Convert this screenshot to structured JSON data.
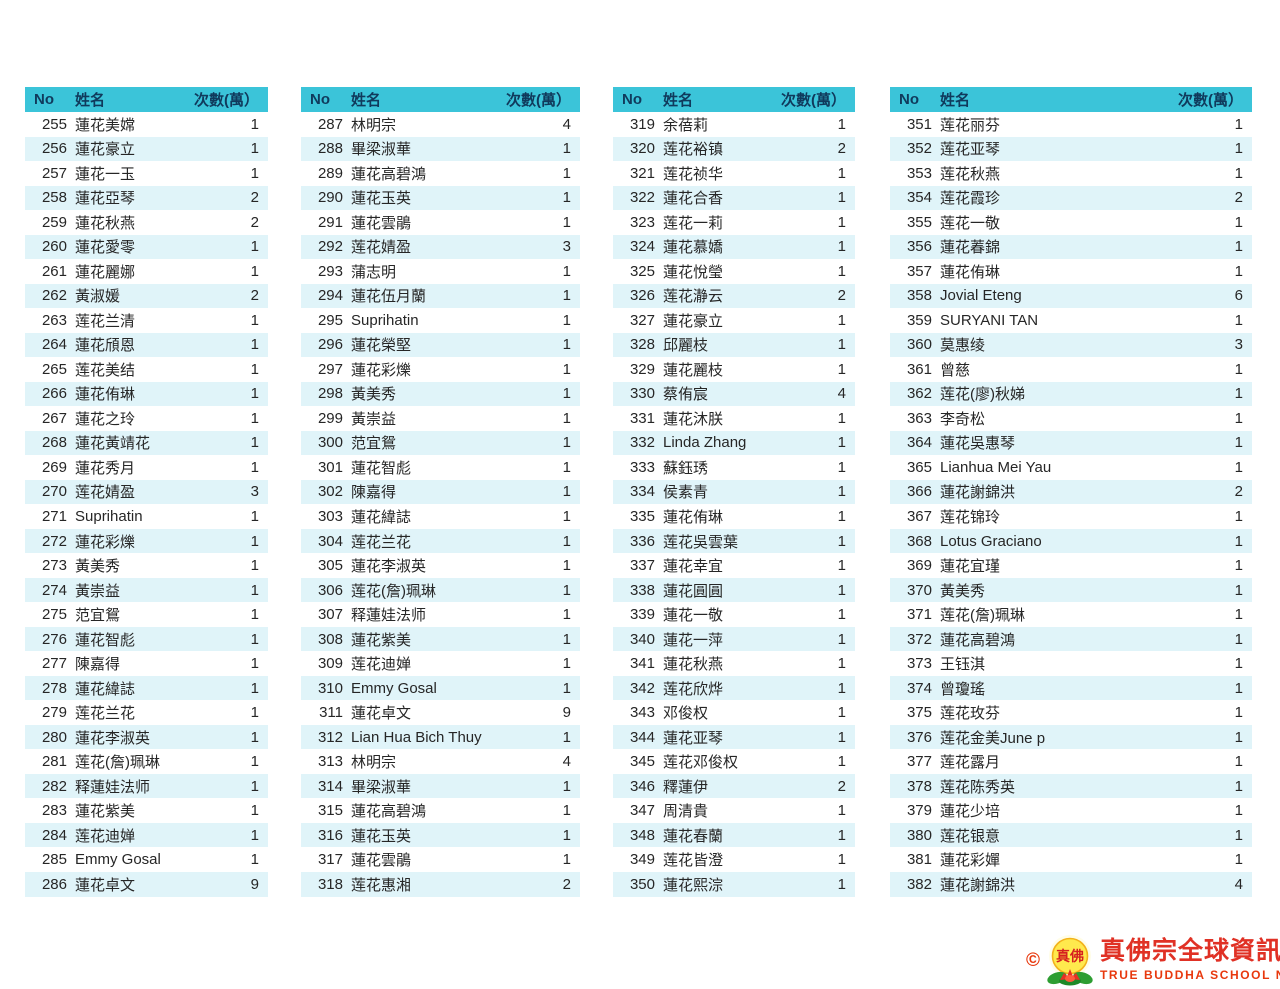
{
  "colors": {
    "header_bg": "#3bc4d9",
    "header_text": "#103a5c",
    "row_alt_bg": "#e0f4f9",
    "body_text": "#262626",
    "logo_red": "#e03125"
  },
  "tables": [
    {
      "headers": {
        "no": "No",
        "name": "姓名",
        "count": "次數(萬）"
      },
      "rows": [
        [
          255,
          "蓮花美嫦",
          1
        ],
        [
          256,
          "蓮花豪立",
          1
        ],
        [
          257,
          "蓮花一玉",
          1
        ],
        [
          258,
          "蓮花亞琴",
          2
        ],
        [
          259,
          "蓮花秋燕",
          2
        ],
        [
          260,
          "蓮花愛零",
          1
        ],
        [
          261,
          "蓮花麗娜",
          1
        ],
        [
          262,
          "黃淑媛",
          2
        ],
        [
          263,
          "莲花兰清",
          1
        ],
        [
          264,
          "蓮花頎恩",
          1
        ],
        [
          265,
          "莲花美结",
          1
        ],
        [
          266,
          "蓮花侑琳",
          1
        ],
        [
          267,
          "蓮花之玲",
          1
        ],
        [
          268,
          "蓮花黃靖花",
          1
        ],
        [
          269,
          "蓮花秀月",
          1
        ],
        [
          270,
          "莲花婧盈",
          3
        ],
        [
          271,
          "Suprihatin",
          1
        ],
        [
          272,
          "蓮花彩爍",
          1
        ],
        [
          273,
          "黃美秀",
          1
        ],
        [
          274,
          "黃崇益",
          1
        ],
        [
          275,
          "范宜鴛",
          1
        ],
        [
          276,
          "蓮花智彪",
          1
        ],
        [
          277,
          "陳嘉得",
          1
        ],
        [
          278,
          "蓮花緯誌",
          1
        ],
        [
          279,
          "莲花兰花",
          1
        ],
        [
          280,
          "蓮花李淑英",
          1
        ],
        [
          281,
          "莲花(詹)珮琳",
          1
        ],
        [
          282,
          "释蓮娃法师",
          1
        ],
        [
          283,
          "蓮花紫美",
          1
        ],
        [
          284,
          "莲花迪婵",
          1
        ],
        [
          285,
          "Emmy Gosal",
          1
        ],
        [
          286,
          "蓮花卓文",
          9
        ]
      ]
    },
    {
      "headers": {
        "no": "No",
        "name": "姓名",
        "count": "次數(萬）"
      },
      "rows": [
        [
          287,
          "林明宗",
          4
        ],
        [
          288,
          "畢梁淑華",
          1
        ],
        [
          289,
          "蓮花高碧鴻",
          1
        ],
        [
          290,
          "蓮花玉英",
          1
        ],
        [
          291,
          "蓮花雲鵑",
          1
        ],
        [
          292,
          "莲花婧盈",
          3
        ],
        [
          293,
          "蒲志明",
          1
        ],
        [
          294,
          "蓮花伍月蘭",
          1
        ],
        [
          295,
          "Suprihatin",
          1
        ],
        [
          296,
          "蓮花榮堅",
          1
        ],
        [
          297,
          "蓮花彩爍",
          1
        ],
        [
          298,
          "黃美秀",
          1
        ],
        [
          299,
          "黃崇益",
          1
        ],
        [
          300,
          "范宜鴛",
          1
        ],
        [
          301,
          "蓮花智彪",
          1
        ],
        [
          302,
          "陳嘉得",
          1
        ],
        [
          303,
          "蓮花緯誌",
          1
        ],
        [
          304,
          "莲花兰花",
          1
        ],
        [
          305,
          "蓮花李淑英",
          1
        ],
        [
          306,
          "莲花(詹)珮琳",
          1
        ],
        [
          307,
          "释蓮娃法师",
          1
        ],
        [
          308,
          "蓮花紫美",
          1
        ],
        [
          309,
          "莲花迪婵",
          1
        ],
        [
          310,
          "Emmy Gosal",
          1
        ],
        [
          311,
          "蓮花卓文",
          9
        ],
        [
          312,
          "Lian Hua Bich Thuy",
          1
        ],
        [
          313,
          "林明宗",
          4
        ],
        [
          314,
          "畢梁淑華",
          1
        ],
        [
          315,
          "蓮花高碧鴻",
          1
        ],
        [
          316,
          "蓮花玉英",
          1
        ],
        [
          317,
          "蓮花雲鵑",
          1
        ],
        [
          318,
          "莲花惠湘",
          2
        ]
      ]
    },
    {
      "headers": {
        "no": "No",
        "name": "姓名",
        "count": "次數(萬）"
      },
      "rows": [
        [
          319,
          "余蓓莉",
          1
        ],
        [
          320,
          "莲花裕镇",
          2
        ],
        [
          321,
          "莲花祯华",
          1
        ],
        [
          322,
          "蓮花合香",
          1
        ],
        [
          323,
          "莲花一莉",
          1
        ],
        [
          324,
          "蓮花慕嬌",
          1
        ],
        [
          325,
          "蓮花悅瑩",
          1
        ],
        [
          326,
          "莲花瀞云",
          2
        ],
        [
          327,
          "蓮花豪立",
          1
        ],
        [
          328,
          "邱麗枝",
          1
        ],
        [
          329,
          "蓮花麗枝",
          1
        ],
        [
          330,
          "蔡侑宸",
          4
        ],
        [
          331,
          "蓮花沐朕",
          1
        ],
        [
          332,
          "Linda Zhang",
          1
        ],
        [
          333,
          "蘇鈺琇",
          1
        ],
        [
          334,
          "侯素青",
          1
        ],
        [
          335,
          "蓮花侑琳",
          1
        ],
        [
          336,
          "莲花吳雲葉",
          1
        ],
        [
          337,
          "蓮花幸宜",
          1
        ],
        [
          338,
          "蓮花圓圓",
          1
        ],
        [
          339,
          "蓮花一敬",
          1
        ],
        [
          340,
          "蓮花一萍",
          1
        ],
        [
          341,
          "蓮花秋燕",
          1
        ],
        [
          342,
          "莲花欣烨",
          1
        ],
        [
          343,
          "邓俊权",
          1
        ],
        [
          344,
          "蓮花亚琴",
          1
        ],
        [
          345,
          "莲花邓俊权",
          1
        ],
        [
          346,
          "釋蓮伊",
          2
        ],
        [
          347,
          "周清貴",
          1
        ],
        [
          348,
          "蓮花春蘭",
          1
        ],
        [
          349,
          "莲花皆澄",
          1
        ],
        [
          350,
          "蓮花熙淙",
          1
        ]
      ]
    },
    {
      "headers": {
        "no": "No",
        "name": "姓名",
        "count": "次數(萬）"
      },
      "rows": [
        [
          351,
          "莲花丽芬",
          1
        ],
        [
          352,
          "莲花亚琴",
          1
        ],
        [
          353,
          "莲花秋燕",
          1
        ],
        [
          354,
          "莲花霞珍",
          2
        ],
        [
          355,
          "莲花一敬",
          1
        ],
        [
          356,
          "蓮花萶錦",
          1
        ],
        [
          357,
          "蓮花侑琳",
          1
        ],
        [
          358,
          "Jovial Eteng",
          6
        ],
        [
          359,
          "SURYANI TAN",
          1
        ],
        [
          360,
          "莫惠绫",
          3
        ],
        [
          361,
          "曾慈",
          1
        ],
        [
          362,
          "莲花(廖)秋娣",
          1
        ],
        [
          363,
          "李奇松",
          1
        ],
        [
          364,
          "蓮花吳惠琴",
          1
        ],
        [
          365,
          "Lianhua Mei Yau",
          1
        ],
        [
          366,
          "蓮花謝錦洪",
          2
        ],
        [
          367,
          "莲花锦玲",
          1
        ],
        [
          368,
          "Lotus Graciano",
          1
        ],
        [
          369,
          "蓮花宜瑾",
          1
        ],
        [
          370,
          "黃美秀",
          1
        ],
        [
          371,
          "莲花(詹)珮琳",
          1
        ],
        [
          372,
          "蓮花高碧鴻",
          1
        ],
        [
          373,
          "王钰淇",
          1
        ],
        [
          374,
          "曾瓊瑤",
          1
        ],
        [
          375,
          "莲花玫芬",
          1
        ],
        [
          376,
          "莲花金美June p",
          1
        ],
        [
          377,
          "莲花露月",
          1
        ],
        [
          378,
          "莲花陈秀英",
          1
        ],
        [
          379,
          "蓮花少培",
          1
        ],
        [
          380,
          "莲花银意",
          1
        ],
        [
          381,
          "蓮花彩嬋",
          1
        ],
        [
          382,
          "蓮花謝錦洪",
          4
        ]
      ]
    }
  ],
  "footer": {
    "copyright": "©",
    "title_zh": "真佛宗全球資訊網",
    "subtitle_en": "TRUE BUDDHA SCHOOL NET",
    "emblem_seal_text": "真佛"
  }
}
